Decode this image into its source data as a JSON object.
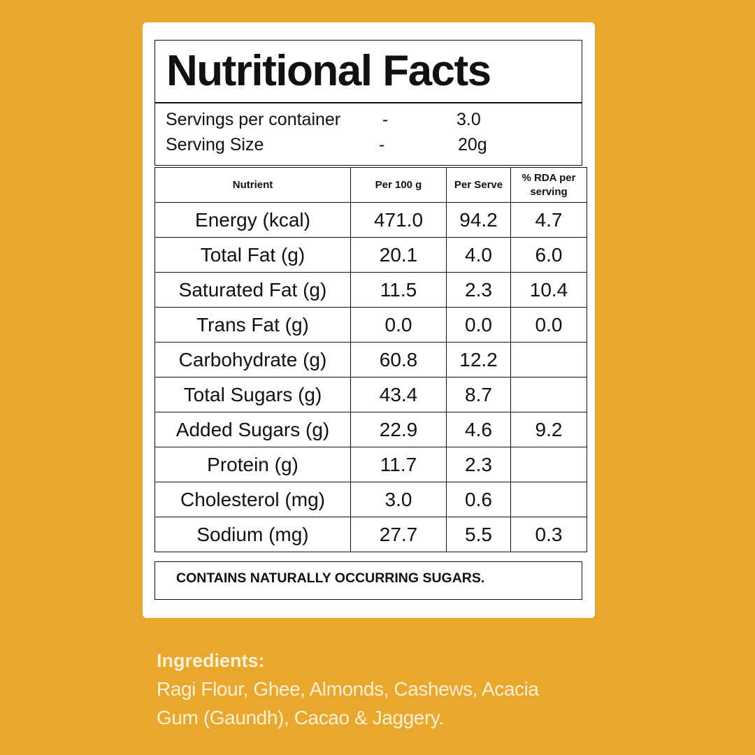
{
  "card": {
    "title": "Nutritional Facts",
    "servings": [
      {
        "label": "Servings per container",
        "dash": "-",
        "value": "3.0"
      },
      {
        "label": "Serving Size",
        "dash": "-",
        "value": "20g"
      }
    ],
    "table": {
      "header": [
        "Nutrient",
        "Per 100 g",
        "Per Serve",
        "% RDA per serving"
      ],
      "rows": [
        [
          "Energy (kcal)",
          "471.0",
          "94.2",
          "4.7"
        ],
        [
          "Total Fat (g)",
          "20.1",
          "4.0",
          "6.0"
        ],
        [
          "Saturated Fat (g)",
          "11.5",
          "2.3",
          "10.4"
        ],
        [
          "Trans Fat (g)",
          "0.0",
          "0.0",
          "0.0"
        ],
        [
          "Carbohydrate (g)",
          "60.8",
          "12.2"
        ],
        [
          "Total Sugars (g)",
          "43.4",
          "8.7"
        ],
        [
          "Added Sugars (g)",
          "22.9",
          "4.6",
          "9.2"
        ],
        [
          "Protein (g)",
          "11.7",
          "2.3"
        ],
        [
          "Cholesterol (mg)",
          "3.0",
          "0.6"
        ],
        [
          "Sodium (mg)",
          "27.7",
          "5.5",
          "0.3"
        ]
      ]
    },
    "note": "CONTAINS NATURALLY OCCURRING SUGARS."
  },
  "ingredients": {
    "heading": "Ingredients:",
    "lines": [
      "Ragi Flour, Ghee, Almonds, Cashews, Acacia",
      "Gum (Gaundh), Cacao & Jaggery."
    ]
  }
}
